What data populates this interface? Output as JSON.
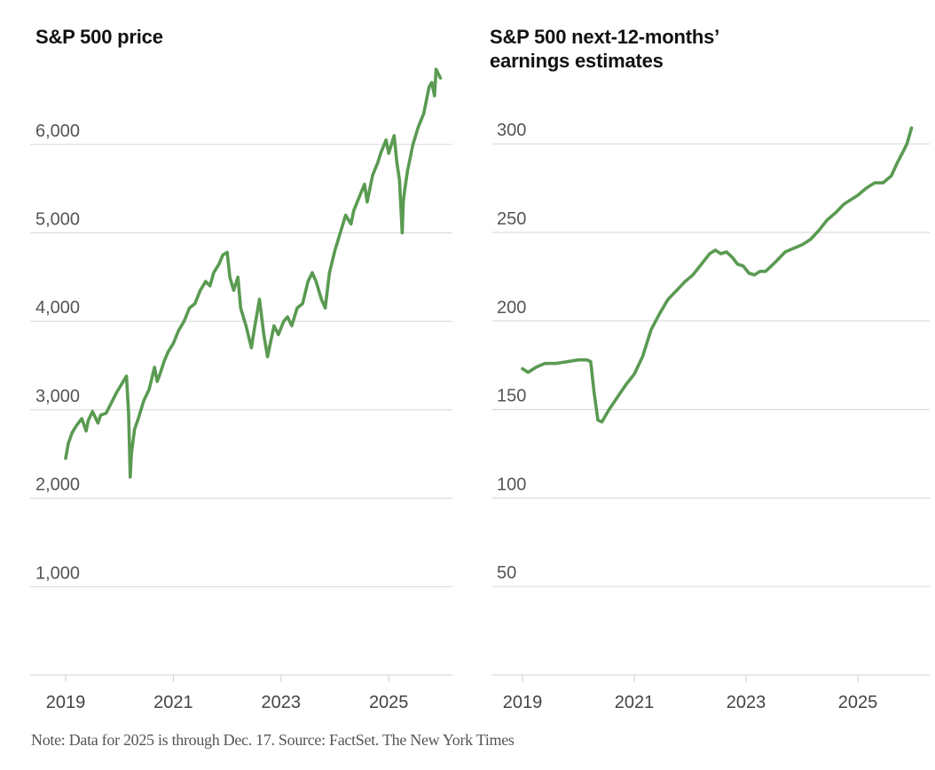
{
  "line_color": "#5a9a52",
  "note": "Note: Data for 2025 is through Dec. 17.  Source:  FactSet.  The New York Times",
  "chart_data": [
    {
      "type": "line",
      "title": "S&P 500 price",
      "xlabel": "",
      "ylabel": "",
      "grid": true,
      "ylim": [
        0,
        7000
      ],
      "xlim": [
        2018.7,
        2026.3
      ],
      "yticks": [
        1000,
        2000,
        3000,
        4000,
        5000,
        6000
      ],
      "ytick_labels": [
        "1,000",
        "2,000",
        "3,000",
        "4,000",
        "5,000",
        "6,000"
      ],
      "xticks": [
        2019,
        2021,
        2023,
        2025
      ],
      "xtick_labels": [
        "2019",
        "2021",
        "2023",
        "2025"
      ],
      "series": [
        {
          "name": "S&P 500 price",
          "x": [
            2019.0,
            2019.05,
            2019.12,
            2019.2,
            2019.3,
            2019.38,
            2019.42,
            2019.5,
            2019.6,
            2019.65,
            2019.75,
            2019.85,
            2019.95,
            2020.05,
            2020.13,
            2020.17,
            2020.2,
            2020.22,
            2020.28,
            2020.35,
            2020.45,
            2020.55,
            2020.65,
            2020.7,
            2020.75,
            2020.83,
            2020.9,
            2021.0,
            2021.1,
            2021.2,
            2021.3,
            2021.4,
            2021.5,
            2021.6,
            2021.68,
            2021.75,
            2021.85,
            2021.92,
            2022.0,
            2022.05,
            2022.12,
            2022.2,
            2022.25,
            2022.35,
            2022.45,
            2022.5,
            2022.6,
            2022.68,
            2022.75,
            2022.8,
            2022.87,
            2022.95,
            2023.05,
            2023.12,
            2023.2,
            2023.3,
            2023.4,
            2023.5,
            2023.58,
            2023.65,
            2023.75,
            2023.82,
            2023.9,
            2024.0,
            2024.1,
            2024.2,
            2024.3,
            2024.35,
            2024.45,
            2024.55,
            2024.6,
            2024.7,
            2024.8,
            2024.85,
            2024.95,
            2025.0,
            2025.1,
            2025.15,
            2025.2,
            2025.25,
            2025.27,
            2025.3,
            2025.35,
            2025.45,
            2025.55,
            2025.65,
            2025.75,
            2025.8,
            2025.85,
            2025.88,
            2025.92,
            2025.96
          ],
          "y": [
            2450,
            2620,
            2740,
            2820,
            2900,
            2760,
            2880,
            2980,
            2850,
            2940,
            2960,
            3080,
            3200,
            3300,
            3380,
            2950,
            2240,
            2500,
            2780,
            2900,
            3100,
            3230,
            3480,
            3320,
            3400,
            3550,
            3650,
            3750,
            3900,
            4000,
            4150,
            4200,
            4350,
            4450,
            4400,
            4550,
            4650,
            4750,
            4780,
            4500,
            4350,
            4500,
            4150,
            3950,
            3700,
            3900,
            4250,
            3850,
            3600,
            3750,
            3950,
            3850,
            4000,
            4050,
            3950,
            4150,
            4200,
            4450,
            4550,
            4450,
            4250,
            4150,
            4550,
            4800,
            5000,
            5200,
            5100,
            5250,
            5400,
            5550,
            5350,
            5650,
            5800,
            5900,
            6050,
            5900,
            6100,
            5800,
            5600,
            5000,
            5350,
            5500,
            5700,
            6000,
            6200,
            6350,
            6650,
            6700,
            6550,
            6850,
            6800,
            6750
          ]
        }
      ]
    },
    {
      "type": "line",
      "title": "S&P 500 next-12-months’ earnings estimates",
      "xlabel": "",
      "ylabel": "",
      "grid": true,
      "ylim": [
        0,
        325
      ],
      "xlim": [
        2018.5,
        2026.3
      ],
      "yticks": [
        50,
        100,
        150,
        200,
        250,
        300
      ],
      "ytick_labels": [
        "50",
        "100",
        "150",
        "200",
        "250",
        "300"
      ],
      "xticks": [
        2019,
        2021,
        2023,
        2025
      ],
      "xtick_labels": [
        "2019",
        "2021",
        "2023",
        "2025"
      ],
      "series": [
        {
          "name": "Next-12-months earnings estimates",
          "x": [
            2019.0,
            2019.1,
            2019.25,
            2019.4,
            2019.6,
            2019.8,
            2020.0,
            2020.15,
            2020.22,
            2020.28,
            2020.35,
            2020.42,
            2020.55,
            2020.7,
            2020.85,
            2021.0,
            2021.15,
            2021.3,
            2021.45,
            2021.6,
            2021.75,
            2021.9,
            2022.05,
            2022.2,
            2022.35,
            2022.45,
            2022.55,
            2022.65,
            2022.75,
            2022.85,
            2022.95,
            2023.05,
            2023.15,
            2023.25,
            2023.35,
            2023.45,
            2023.55,
            2023.7,
            2023.85,
            2024.0,
            2024.15,
            2024.3,
            2024.45,
            2024.6,
            2024.75,
            2024.9,
            2025.0,
            2025.15,
            2025.3,
            2025.45,
            2025.6,
            2025.7,
            2025.8,
            2025.88,
            2025.96
          ],
          "y": [
            173,
            171,
            174,
            176,
            176,
            177,
            178,
            178,
            177,
            160,
            144,
            143,
            150,
            157,
            164,
            170,
            180,
            195,
            204,
            212,
            217,
            222,
            226,
            232,
            238,
            240,
            238,
            239,
            236,
            232,
            231,
            227,
            226,
            228,
            228,
            231,
            234,
            239,
            241,
            243,
            246,
            251,
            257,
            261,
            266,
            269,
            271,
            275,
            278,
            278,
            282,
            289,
            295,
            300,
            309
          ]
        }
      ]
    }
  ]
}
